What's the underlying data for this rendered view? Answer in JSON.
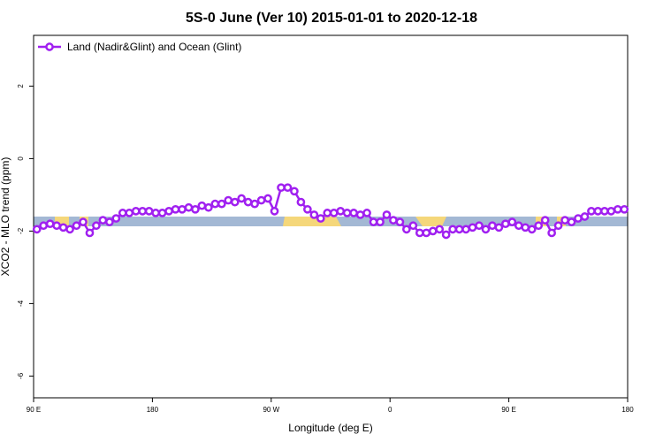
{
  "chart_data": {
    "type": "line",
    "title": "5S-0 June (Ver 10)   2015-01-01 to 2020-12-18",
    "x_label": "Longitude (deg E)",
    "y_label": "XCO2 - MLO trend (ppm)",
    "x": [
      92.5,
      97.5,
      102.5,
      107.5,
      112.5,
      117.5,
      122.5,
      127.5,
      132.5,
      137.5,
      142.5,
      147.5,
      152.5,
      157.5,
      162.5,
      167.5,
      172.5,
      177.5,
      182.5,
      187.5,
      192.5,
      197.5,
      202.5,
      207.5,
      212.5,
      217.5,
      222.5,
      227.5,
      232.5,
      237.5,
      242.5,
      247.5,
      252.5,
      257.5,
      262.5,
      267.5,
      272.5,
      277.5,
      282.5,
      287.5,
      292.5,
      297.5,
      302.5,
      307.5,
      312.5,
      317.5,
      322.5,
      327.5,
      332.5,
      337.5,
      342.5,
      347.5,
      352.5,
      357.5,
      362.5,
      367.5,
      372.5,
      377.5,
      382.5,
      387.5,
      392.5,
      397.5,
      402.5,
      407.5,
      412.5,
      417.5,
      422.5,
      427.5,
      432.5,
      437.5,
      442.5,
      447.5,
      452.5,
      457.5,
      462.5,
      467.5,
      472.5,
      477.5,
      482.5,
      487.5,
      492.5,
      497.5,
      502.5,
      507.5,
      512.5,
      517.5,
      522.5,
      527.5,
      532.5,
      537.5
    ],
    "series": [
      {
        "name": "Land (Nadir&Glint) and Ocean (Glint)",
        "color": "#a020f0",
        "values": [
          -1.95,
          -1.85,
          -1.8,
          -1.85,
          -1.9,
          -1.95,
          -1.85,
          -1.75,
          -2.05,
          -1.85,
          -1.7,
          -1.75,
          -1.65,
          -1.5,
          -1.5,
          -1.45,
          -1.45,
          -1.45,
          -1.5,
          -1.5,
          -1.45,
          -1.4,
          -1.4,
          -1.35,
          -1.4,
          -1.3,
          -1.35,
          -1.25,
          -1.25,
          -1.15,
          -1.2,
          -1.1,
          -1.2,
          -1.25,
          -1.15,
          -1.1,
          -1.45,
          -0.8,
          -0.8,
          -0.9,
          -1.2,
          -1.4,
          -1.55,
          -1.65,
          -1.5,
          -1.5,
          -1.45,
          -1.5,
          -1.5,
          -1.55,
          -1.5,
          -1.75,
          -1.75,
          -1.55,
          -1.7,
          -1.75,
          -1.95,
          -1.85,
          -2.05,
          -2.05,
          -2.0,
          -1.95,
          -2.1,
          -1.95,
          -1.95,
          -1.95,
          -1.9,
          -1.85,
          -1.95,
          -1.85,
          -1.9,
          -1.8,
          -1.75,
          -1.85,
          -1.9,
          -1.95,
          -1.85,
          -1.7,
          -2.05,
          -1.85,
          -1.7,
          -1.75,
          -1.65,
          -1.6,
          -1.45,
          -1.45,
          -1.45,
          -1.45,
          -1.4,
          -1.4
        ]
      }
    ],
    "xlim": [
      90,
      540
    ],
    "xticks": [
      {
        "value": 90,
        "label": "90 E"
      },
      180,
      {
        "value": 270,
        "label": "90 W"
      },
      {
        "value": 360,
        "label": "0"
      },
      {
        "value": 450,
        "label": "90 E"
      },
      {
        "value": 540,
        "label": "180"
      }
    ],
    "ylim": [
      -6.6,
      3.4
    ],
    "yticks": [
      -6,
      -4,
      -2,
      0,
      2
    ],
    "legend": "top-left"
  }
}
